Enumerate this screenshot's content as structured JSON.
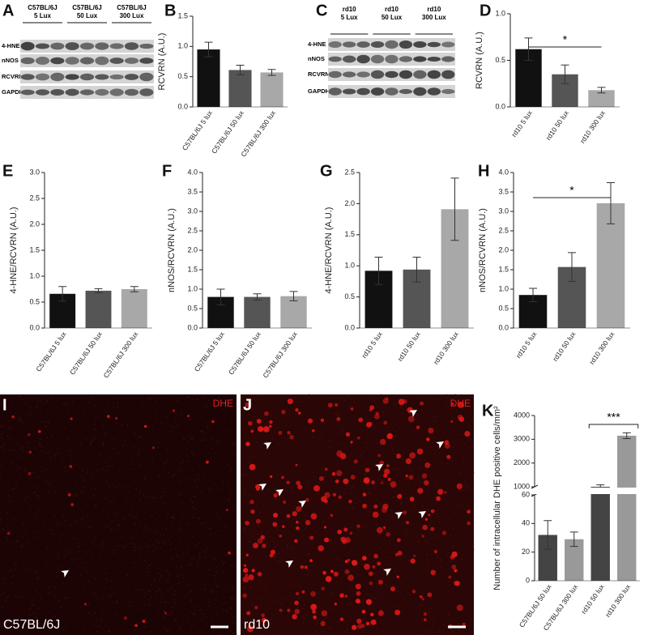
{
  "blots": [
    {
      "panel": "A",
      "groups": [
        [
          "C57BL/6J",
          "5 Lux"
        ],
        [
          "C57BL/6J",
          "50 Lux"
        ],
        [
          "C57BL/6J",
          "300 Lux"
        ]
      ],
      "rows": [
        "4-HNE",
        "nNOS",
        "RCVRN",
        "GAPDH"
      ]
    },
    {
      "panel": "C",
      "groups": [
        [
          "rd10",
          "5 Lux"
        ],
        [
          "rd10",
          "50 Lux"
        ],
        [
          "rd10",
          "300 Lux"
        ]
      ],
      "rows": [
        "4-HNE",
        "nNOS",
        "RCVRN",
        "GAPDH"
      ]
    }
  ],
  "chart_data": [
    {
      "panel": "B",
      "type": "bar",
      "ylabel": "RCVRN (A.U.)",
      "categories": [
        "C57BL/6J 5 lux",
        "C57BL/6J 50 lux",
        "C57BL/6J 300 lux"
      ],
      "values": [
        0.95,
        0.61,
        0.57
      ],
      "errors": [
        0.12,
        0.08,
        0.05
      ],
      "colors": [
        "#111111",
        "#555555",
        "#a8a8a8"
      ],
      "ylim": [
        0,
        1.5
      ],
      "yticks": [
        {
          "value": 0,
          "label": "0.0"
        },
        0.5,
        {
          "value": 1,
          "label": "1.0"
        },
        1.5
      ]
    },
    {
      "panel": "D",
      "type": "bar",
      "ylabel": "RCVRN (A.U.)",
      "categories": [
        "rd10 5 lux",
        "rd10 50 lux",
        "rd10 300 lux"
      ],
      "values": [
        0.62,
        0.35,
        0.18
      ],
      "errors": [
        0.12,
        0.1,
        0.03
      ],
      "colors": [
        "#111111",
        "#555555",
        "#a8a8a8"
      ],
      "ylim": [
        0,
        1
      ],
      "yticks": [
        {
          "value": 0,
          "label": "0.0"
        },
        0.5,
        {
          "value": 1,
          "label": "1.0"
        }
      ],
      "significance": "*"
    },
    {
      "panel": "E",
      "type": "bar",
      "ylabel": "4-HNE/RCVRN (A.U.)",
      "categories": [
        "C57BL/6J 5 lux",
        "C57BL/6J 50 lux",
        "C57BL/6J 300 lux"
      ],
      "values": [
        0.66,
        0.72,
        0.75
      ],
      "errors": [
        0.14,
        0.04,
        0.05
      ],
      "colors": [
        "#111111",
        "#555555",
        "#a8a8a8"
      ],
      "ylim": [
        0,
        3
      ],
      "yticks": [
        {
          "value": 0,
          "label": "0.0"
        },
        0.5,
        {
          "value": 1,
          "label": "1.0"
        },
        1.5,
        {
          "value": 2,
          "label": "2.0"
        },
        2.5,
        {
          "value": 3,
          "label": "3.0"
        }
      ]
    },
    {
      "panel": "F",
      "type": "bar",
      "ylabel": "nNOS/RCVRN (A.U.)",
      "categories": [
        "C57BL/6J 5 lux",
        "C57BL/6J 50 lux",
        "C57BL/6J 300 lux"
      ],
      "values": [
        0.8,
        0.8,
        0.82
      ],
      "errors": [
        0.2,
        0.08,
        0.12
      ],
      "colors": [
        "#111111",
        "#555555",
        "#a8a8a8"
      ],
      "ylim": [
        0,
        4
      ],
      "yticks": [
        {
          "value": 0,
          "label": "0.0"
        },
        0.5,
        {
          "value": 1,
          "label": "1.0"
        },
        1.5,
        {
          "value": 2,
          "label": "2.0"
        },
        2.5,
        {
          "value": 3,
          "label": "3.0"
        },
        3.5,
        {
          "value": 4,
          "label": "4.0"
        }
      ]
    },
    {
      "panel": "G",
      "type": "bar",
      "ylabel": "4-HNE/RCVRN (A.U.)",
      "categories": [
        "rd10 5 lux",
        "rd10 50 lux",
        "rd10 300 lux"
      ],
      "values": [
        0.92,
        0.94,
        1.91
      ],
      "errors": [
        0.22,
        0.2,
        0.5
      ],
      "colors": [
        "#111111",
        "#555555",
        "#a8a8a8"
      ],
      "ylim": [
        0,
        2.5
      ],
      "yticks": [
        {
          "value": 0,
          "label": "0.0"
        },
        0.5,
        {
          "value": 1,
          "label": "1.0"
        },
        1.5,
        {
          "value": 2,
          "label": "2.0"
        },
        2.5
      ]
    },
    {
      "panel": "H",
      "type": "bar",
      "ylabel": "nNOS/RCVRN (A.U.)",
      "categories": [
        "rd10 5 lux",
        "rd10 50 lux",
        "rd10 300 lux"
      ],
      "values": [
        0.85,
        1.57,
        3.21
      ],
      "errors": [
        0.17,
        0.37,
        0.53
      ],
      "colors": [
        "#111111",
        "#555555",
        "#a8a8a8"
      ],
      "ylim": [
        0,
        4
      ],
      "yticks": [
        {
          "value": 0,
          "label": "0.0"
        },
        0.5,
        {
          "value": 1,
          "label": "1.0"
        },
        1.5,
        {
          "value": 2,
          "label": "2.0"
        },
        2.5,
        {
          "value": 3,
          "label": "3.0"
        },
        3.5,
        {
          "value": 4,
          "label": "4.0"
        }
      ],
      "significance": "*"
    },
    {
      "panel": "K",
      "type": "bar",
      "ylabel": "Number of intracellular DHE positive cells/mm²",
      "categories": [
        "C57BL/6J 50 lux",
        "C57BL/6J 300 lux",
        "rd10 50 lux",
        "rd10 300 lux"
      ],
      "values": [
        32,
        29,
        1000,
        3150
      ],
      "errors": [
        10,
        5,
        80,
        120
      ],
      "colors": [
        "#444444",
        "#999999",
        "#444444",
        "#999999"
      ],
      "segments": [
        {
          "ylim": [
            0,
            60
          ],
          "yticks": [
            0,
            20,
            40,
            60
          ]
        },
        {
          "ylim": [
            1000,
            4000
          ],
          "yticks": [
            1000,
            2000,
            3000,
            4000
          ]
        }
      ],
      "significance": "***"
    }
  ],
  "images": [
    {
      "panel": "I",
      "label": "C57BL/6J",
      "stain": "DHE"
    },
    {
      "panel": "J",
      "label": "rd10",
      "stain": "DHE"
    }
  ]
}
